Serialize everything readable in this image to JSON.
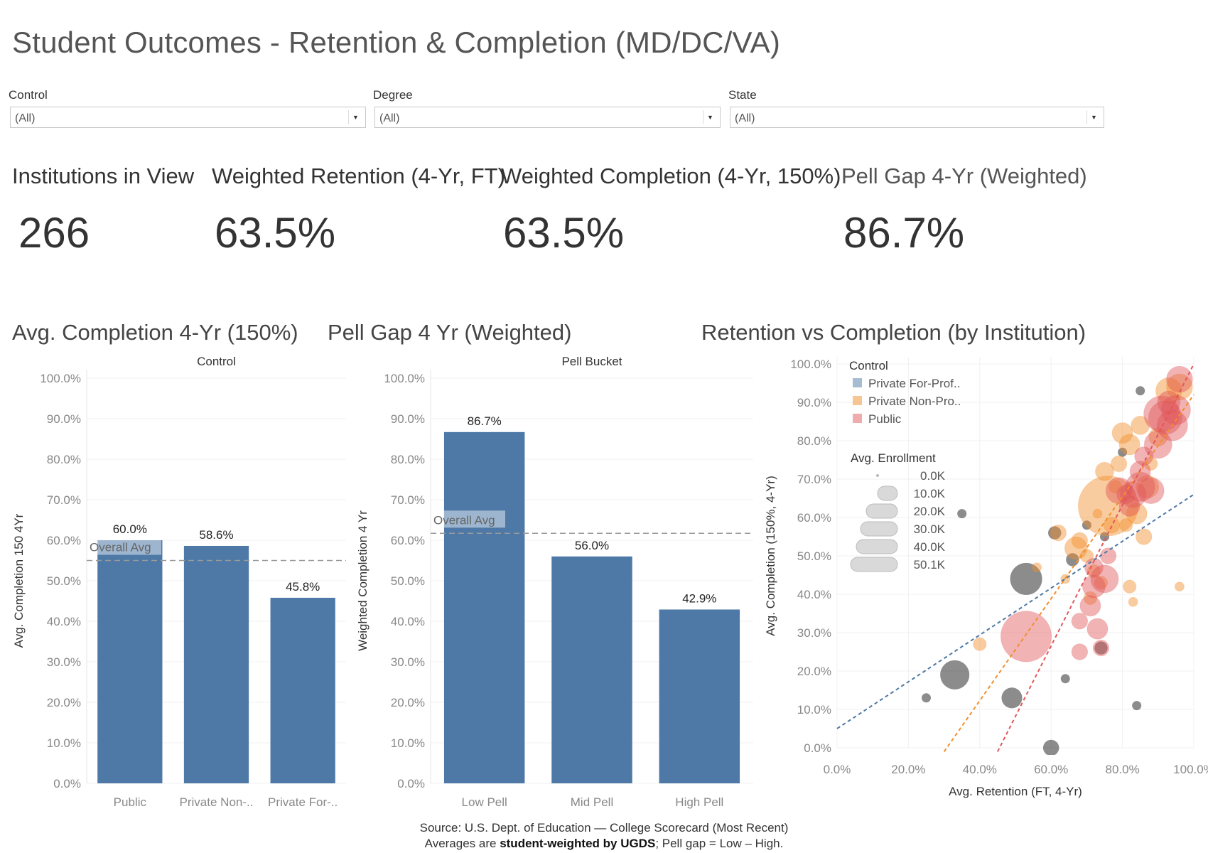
{
  "title": "Student Outcomes - Retention & Completion (MD/DC/VA)",
  "filters": [
    {
      "label": "Control",
      "value": "(All)"
    },
    {
      "label": "Degree",
      "value": "(All)"
    },
    {
      "label": "State",
      "value": "(All)"
    }
  ],
  "kpis": [
    {
      "title": "Institutions in View",
      "value": "266"
    },
    {
      "title": "Weighted Retention (4-Yr, FT)",
      "value": "63.5%"
    },
    {
      "title": "Weighted Completion (4-Yr, 150%)",
      "value": "63.5%"
    },
    {
      "title": "Pell Gap 4-Yr (Weighted)",
      "value": "86.7%"
    }
  ],
  "charts": {
    "completion": {
      "title": "Avg. Completion 4-Yr (150%)"
    },
    "pellgap": {
      "title": "Pell Gap 4 Yr (Weighted)"
    },
    "scatter": {
      "title": "Retention vs Completion (by Institution)"
    }
  },
  "source": {
    "line1": "Source: U.S. Dept. of Education — College Scorecard (Most Recent)",
    "line2_pre": "Averages are ",
    "line2_bold": "student-weighted by UGDS",
    "line2_post": "; Pell gap = Low – High."
  },
  "colors": {
    "bar": "#4e79a7",
    "public": "#e15759",
    "private_nonprofit": "#f28e2b",
    "private_forprofit": "#4e79a7"
  },
  "chart_data": [
    {
      "type": "bar",
      "header": "Control",
      "categories": [
        "Public",
        "Private Non-..",
        "Private For-.."
      ],
      "values": [
        60.0,
        58.6,
        45.8
      ],
      "value_labels": [
        "60.0%",
        "58.6%",
        "45.8%"
      ],
      "ylabel": "Avg. Completion 150 4Yr",
      "ylim": [
        0,
        100
      ],
      "yticks": [
        "0.0%",
        "10.0%",
        "20.0%",
        "30.0%",
        "40.0%",
        "50.0%",
        "60.0%",
        "70.0%",
        "80.0%",
        "90.0%",
        "100.0%"
      ],
      "reference_line": {
        "label": "Overall Avg",
        "value": 55
      }
    },
    {
      "type": "bar",
      "header": "Pell Bucket",
      "categories": [
        "Low Pell",
        "Mid Pell",
        "High Pell"
      ],
      "values": [
        86.7,
        56.0,
        42.9
      ],
      "value_labels": [
        "86.7%",
        "56.0%",
        "42.9%"
      ],
      "ylabel": "Weighted Completion 4 Yr",
      "ylim": [
        0,
        100
      ],
      "yticks": [
        "0.0%",
        "10.0%",
        "20.0%",
        "30.0%",
        "40.0%",
        "50.0%",
        "60.0%",
        "70.0%",
        "80.0%",
        "90.0%",
        "100.0%"
      ],
      "reference_line": {
        "label": "Overall Avg",
        "value": 61.7
      }
    },
    {
      "type": "scatter",
      "xlabel": "Avg. Retention (FT, 4-Yr)",
      "ylabel": "Avg. Completion (150%, 4-Yr)",
      "xlim": [
        0,
        100
      ],
      "ylim": [
        0,
        100
      ],
      "xticks": [
        "0.0%",
        "20.0%",
        "40.0%",
        "60.0%",
        "80.0%",
        "100.0%"
      ],
      "yticks": [
        "0.0%",
        "10.0%",
        "20.0%",
        "30.0%",
        "40.0%",
        "50.0%",
        "60.0%",
        "70.0%",
        "80.0%",
        "90.0%",
        "100.0%"
      ],
      "legend_title": "Control",
      "legend": [
        "Private For-Prof..",
        "Private Non-Pro..",
        "Public"
      ],
      "size_legend_title": "Avg. Enrollment",
      "size_legend": [
        "0.0K",
        "10.0K",
        "20.0K",
        "30.0K",
        "40.0K",
        "50.1K"
      ],
      "trend_lines": [
        {
          "series": "Private For-Prof..",
          "x": [
            0,
            100
          ],
          "y": [
            5,
            66
          ]
        },
        {
          "series": "Private Non-Pro..",
          "x": [
            30,
            100
          ],
          "y": [
            -1,
            92
          ]
        },
        {
          "series": "Public",
          "x": [
            45,
            100
          ],
          "y": [
            -1,
            100
          ]
        }
      ],
      "series": [
        {
          "name": "Private For-Prof..",
          "points": [
            [
              53,
              44,
              12
            ],
            [
              33,
              19,
              10
            ],
            [
              49,
              13,
              5
            ],
            [
              61,
              56,
              2
            ],
            [
              74,
              26,
              2
            ],
            [
              85,
              93,
              1
            ],
            [
              25,
              13,
              1
            ],
            [
              64,
              18,
              1
            ],
            [
              60,
              0,
              3
            ],
            [
              75,
              55,
              1
            ],
            [
              80,
              77,
              1
            ],
            [
              84,
              11,
              1
            ],
            [
              70,
              58,
              1
            ],
            [
              66,
              49,
              2
            ],
            [
              35,
              61,
              1
            ]
          ]
        },
        {
          "series": "Private Non-Pro..",
          "points": [
            [
              76,
              63,
              42
            ],
            [
              67,
              52,
              6
            ],
            [
              62,
              56,
              3
            ],
            [
              75,
              72,
              4
            ],
            [
              80,
              82,
              5
            ],
            [
              84,
              61,
              5
            ],
            [
              79,
              74,
              3
            ],
            [
              82,
              79,
              5
            ],
            [
              87,
              68,
              6
            ],
            [
              68,
              54,
              3
            ],
            [
              70,
              50,
              2
            ],
            [
              72,
              46,
              2
            ],
            [
              77,
              58,
              3
            ],
            [
              85,
              84,
              4
            ],
            [
              86,
              55,
              3
            ],
            [
              90,
              81,
              4
            ],
            [
              93,
              93,
              8
            ],
            [
              96,
              94,
              8
            ],
            [
              74,
              43,
              2
            ],
            [
              71,
              39,
              2
            ],
            [
              82,
              42,
              2
            ],
            [
              83,
              38,
              1
            ],
            [
              40,
              27,
              2
            ],
            [
              64,
              44,
              1
            ],
            [
              56,
              47,
              1
            ],
            [
              78,
              68,
              2
            ],
            [
              88,
              74,
              2
            ],
            [
              73,
              61,
              1
            ],
            [
              96,
              42,
              1
            ],
            [
              81,
              58,
              2
            ]
          ]
        },
        {
          "series": "Public",
          "points": [
            [
              53,
              29,
              30
            ],
            [
              75,
              44,
              9
            ],
            [
              72,
              42,
              6
            ],
            [
              71,
              37,
              5
            ],
            [
              73,
              31,
              5
            ],
            [
              68,
              33,
              3
            ],
            [
              68,
              25,
              3
            ],
            [
              79,
              67,
              8
            ],
            [
              83,
              66,
              8
            ],
            [
              85,
              68,
              10
            ],
            [
              88,
              67,
              8
            ],
            [
              85,
              72,
              5
            ],
            [
              90,
              79,
              9
            ],
            [
              91,
              87,
              15
            ],
            [
              92,
              86,
              13
            ],
            [
              94,
              84,
              11
            ],
            [
              95,
              88,
              10
            ],
            [
              96,
              96,
              8
            ],
            [
              93,
              90,
              6
            ],
            [
              81,
              66,
              4
            ],
            [
              82,
              63,
              5
            ],
            [
              76,
              50,
              3
            ],
            [
              72,
              47,
              4
            ],
            [
              74,
              26,
              3
            ],
            [
              86,
              76,
              4
            ]
          ]
        }
      ]
    }
  ]
}
